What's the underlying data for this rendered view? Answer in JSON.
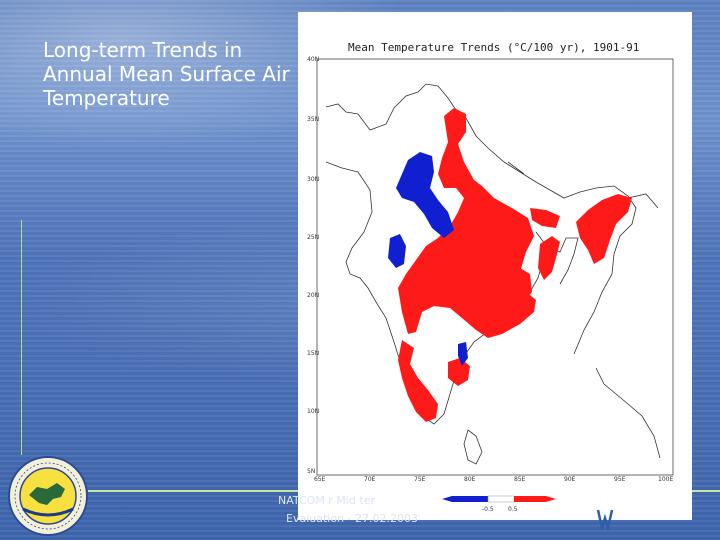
{
  "slide": {
    "title": "Long-term Trends in Annual Mean Surface Air Temperature"
  },
  "map": {
    "title": "Mean Temperature Trends (°C/100 yr), 1901-91",
    "y_ticks": [
      "40N",
      "35N",
      "30N",
      "25N",
      "20N",
      "15N",
      "10N",
      "5N"
    ],
    "x_ticks": [
      "65E",
      "70E",
      "75E",
      "80E",
      "85E",
      "90E",
      "95E",
      "100E"
    ],
    "legend": {
      "negative_label": "-0.5",
      "positive_label": "0.5"
    },
    "colors": {
      "warming": "#ff1a1a",
      "cooling": "#1020d0",
      "boundary": "#333333"
    }
  },
  "footer": {
    "line1": "NATCOM   r      Mid ter",
    "line2": "Evaluation - 27.02.2003"
  },
  "logo": {
    "name": "organisation-seal"
  }
}
